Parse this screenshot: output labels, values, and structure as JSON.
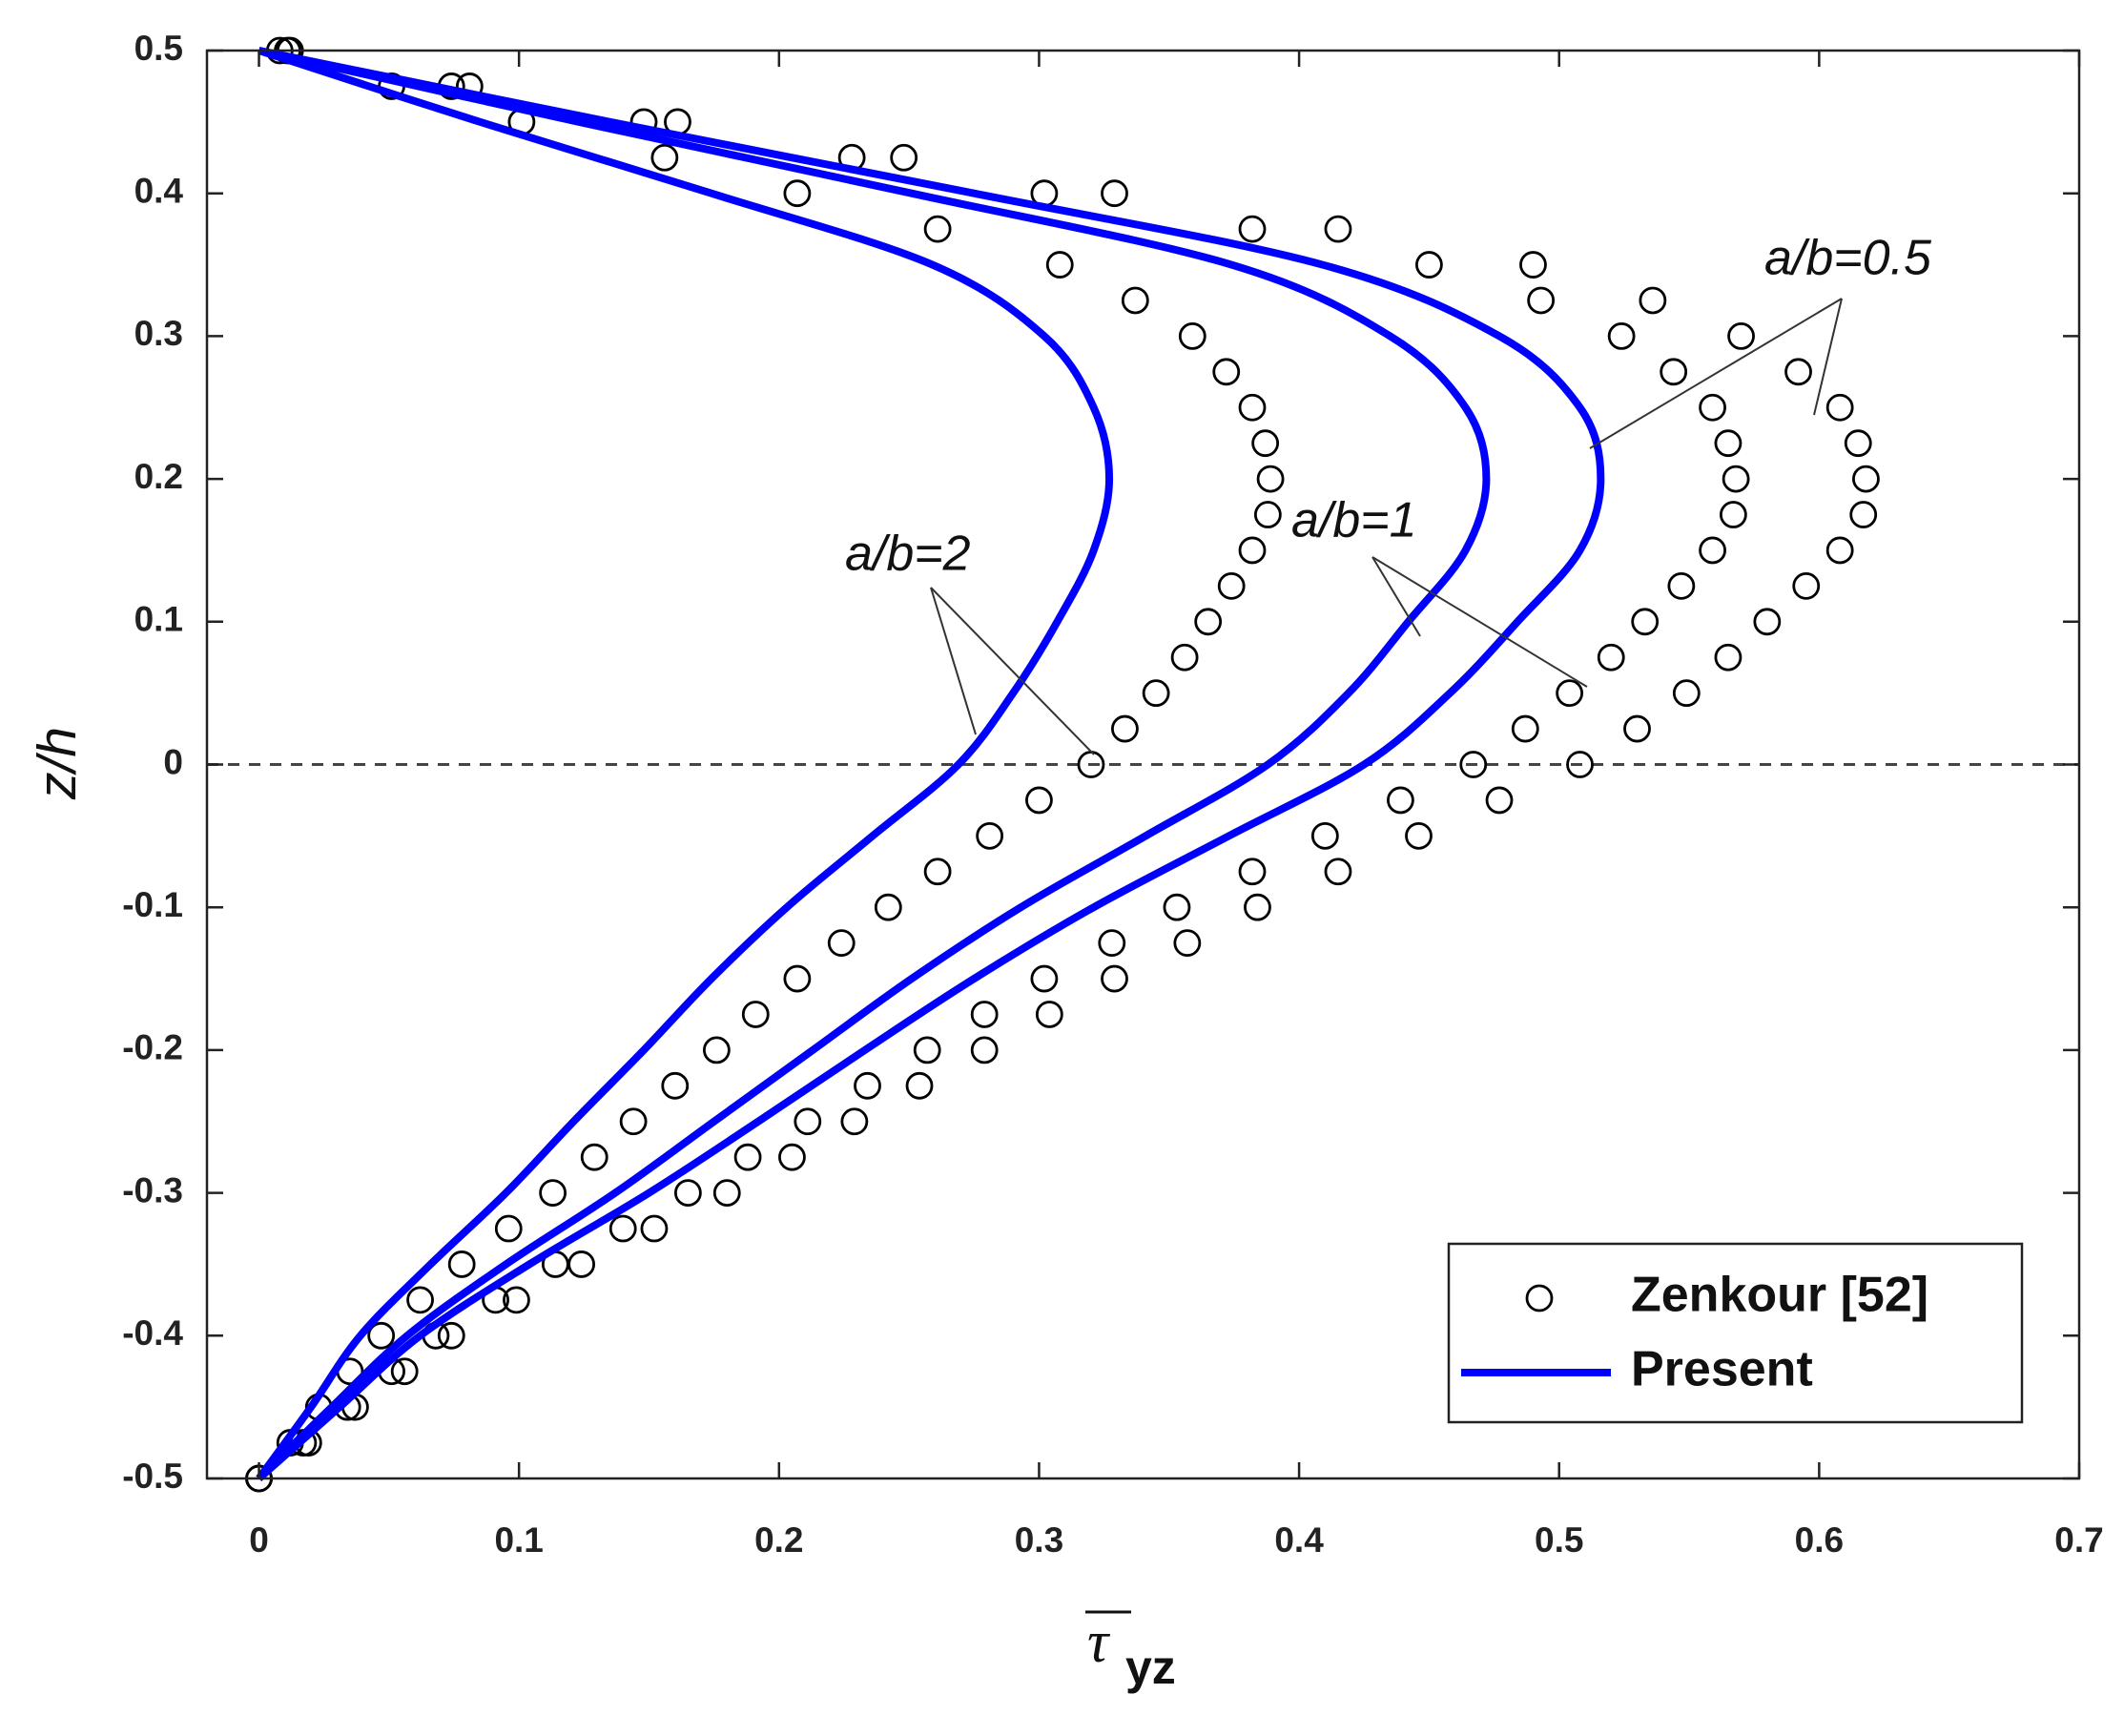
{
  "chart_data": {
    "type": "combo",
    "xlabel": {
      "symbol": "τ",
      "subscript": "yz"
    },
    "ylabel": "z/h",
    "xlim": [
      -0.02,
      0.7
    ],
    "ylim": [
      -0.5,
      0.5
    ],
    "xticks": [
      0,
      0.1,
      0.2,
      0.3,
      0.4,
      0.5,
      0.6,
      0.7
    ],
    "yticks": [
      -0.5,
      -0.4,
      -0.3,
      -0.2,
      -0.1,
      0,
      0.1,
      0.2,
      0.3,
      0.4,
      0.5
    ],
    "reference_line": 0,
    "grid": false,
    "legend": "lower right",
    "annotations": [
      "a/b=2",
      "a/b=1",
      "a/b=0.5"
    ],
    "series": [
      {
        "name": "Zenkour [52]",
        "style": "markers",
        "color": "#000000",
        "curves": [
          {
            "x": [
              0,
              0.012,
              0.023,
              0.035,
              0.047,
              0.062,
              0.078,
              0.096,
              0.113,
              0.129,
              0.144,
              0.16,
              0.176,
              0.191,
              0.207,
              0.224,
              0.242,
              0.261,
              0.281,
              0.3,
              0.32,
              0.333,
              0.345,
              0.356,
              0.365,
              0.374,
              0.382,
              0.388,
              0.389,
              0.387,
              0.382,
              0.372,
              0.359,
              0.337,
              0.308,
              0.261,
              0.207,
              0.156,
              0.101,
              0.051,
              0.008
            ],
            "y": [
              -0.5,
              -0.475,
              -0.45,
              -0.425,
              -0.4,
              -0.375,
              -0.35,
              -0.325,
              -0.3,
              -0.275,
              -0.25,
              -0.225,
              -0.2,
              -0.175,
              -0.15,
              -0.125,
              -0.1,
              -0.075,
              -0.05,
              -0.025,
              0,
              0.025,
              0.05,
              0.075,
              0.1,
              0.125,
              0.15,
              0.175,
              0.2,
              0.225,
              0.25,
              0.275,
              0.3,
              0.325,
              0.35,
              0.375,
              0.4,
              0.425,
              0.45,
              0.475,
              0.5
            ]
          },
          {
            "x": [
              0,
              0.017,
              0.034,
              0.051,
              0.068,
              0.091,
              0.114,
              0.14,
              0.165,
              0.188,
              0.211,
              0.234,
              0.257,
              0.279,
              0.302,
              0.328,
              0.353,
              0.382,
              0.41,
              0.439,
              0.467,
              0.487,
              0.504,
              0.52,
              0.533,
              0.547,
              0.559,
              0.567,
              0.568,
              0.565,
              0.559,
              0.544,
              0.524,
              0.493,
              0.45,
              0.382,
              0.302,
              0.228,
              0.148,
              0.074,
              0.011
            ],
            "y": [
              -0.5,
              -0.475,
              -0.45,
              -0.425,
              -0.4,
              -0.375,
              -0.35,
              -0.325,
              -0.3,
              -0.275,
              -0.25,
              -0.225,
              -0.2,
              -0.175,
              -0.15,
              -0.125,
              -0.1,
              -0.075,
              -0.05,
              -0.025,
              0,
              0.025,
              0.05,
              0.075,
              0.1,
              0.125,
              0.15,
              0.175,
              0.2,
              0.225,
              0.25,
              0.275,
              0.3,
              0.325,
              0.35,
              0.375,
              0.4,
              0.425,
              0.45,
              0.475,
              0.5
            ]
          },
          {
            "x": [
              0,
              0.019,
              0.037,
              0.056,
              0.074,
              0.099,
              0.124,
              0.152,
              0.18,
              0.205,
              0.229,
              0.254,
              0.279,
              0.304,
              0.329,
              0.357,
              0.384,
              0.415,
              0.446,
              0.477,
              0.508,
              0.53,
              0.549,
              0.565,
              0.58,
              0.595,
              0.608,
              0.617,
              0.618,
              0.615,
              0.608,
              0.592,
              0.57,
              0.536,
              0.49,
              0.415,
              0.329,
              0.248,
              0.161,
              0.081,
              0.012
            ],
            "y": [
              -0.5,
              -0.475,
              -0.45,
              -0.425,
              -0.4,
              -0.375,
              -0.35,
              -0.325,
              -0.3,
              -0.275,
              -0.25,
              -0.225,
              -0.2,
              -0.175,
              -0.15,
              -0.125,
              -0.1,
              -0.075,
              -0.05,
              -0.025,
              0,
              0.025,
              0.05,
              0.075,
              0.1,
              0.125,
              0.15,
              0.175,
              0.2,
              0.225,
              0.25,
              0.275,
              0.3,
              0.325,
              0.35,
              0.375,
              0.4,
              0.425,
              0.45,
              0.475,
              0.5
            ]
          }
        ]
      },
      {
        "name": "Present",
        "style": "line",
        "color": "#0000ff",
        "curves": [
          {
            "x": [
              0,
              0.02,
              0.039,
              0.066,
              0.095,
              0.121,
              0.148,
              0.174,
              0.203,
              0.236,
              0.269,
              0.29,
              0.307,
              0.321,
              0.327,
              0.321,
              0.302,
              0.259,
              0.174,
              0.085,
              0
            ],
            "y": [
              -0.5,
              -0.45,
              -0.4,
              -0.35,
              -0.3,
              -0.25,
              -0.2,
              -0.15,
              -0.1,
              -0.05,
              0,
              0.05,
              0.1,
              0.15,
              0.2,
              0.25,
              0.3,
              0.35,
              0.4,
              0.45,
              0.5
            ]
          },
          {
            "x": [
              0,
              0.028,
              0.057,
              0.095,
              0.137,
              0.175,
              0.213,
              0.251,
              0.293,
              0.341,
              0.388,
              0.419,
              0.442,
              0.464,
              0.472,
              0.464,
              0.435,
              0.374,
              0.251,
              0.123,
              0
            ],
            "y": [
              -0.5,
              -0.45,
              -0.4,
              -0.35,
              -0.3,
              -0.25,
              -0.2,
              -0.15,
              -0.1,
              -0.05,
              0,
              0.05,
              0.1,
              0.15,
              0.2,
              0.25,
              0.3,
              0.35,
              0.4,
              0.45,
              0.5
            ]
          },
          {
            "x": [
              0,
              0.031,
              0.062,
              0.104,
              0.15,
              0.192,
              0.233,
              0.275,
              0.321,
              0.373,
              0.425,
              0.458,
              0.484,
              0.508,
              0.516,
              0.508,
              0.477,
              0.409,
              0.275,
              0.135,
              0
            ],
            "y": [
              -0.5,
              -0.45,
              -0.4,
              -0.35,
              -0.3,
              -0.25,
              -0.2,
              -0.15,
              -0.1,
              -0.05,
              0,
              0.05,
              0.1,
              0.15,
              0.2,
              0.25,
              0.3,
              0.35,
              0.4,
              0.45,
              0.5
            ]
          }
        ]
      }
    ]
  }
}
